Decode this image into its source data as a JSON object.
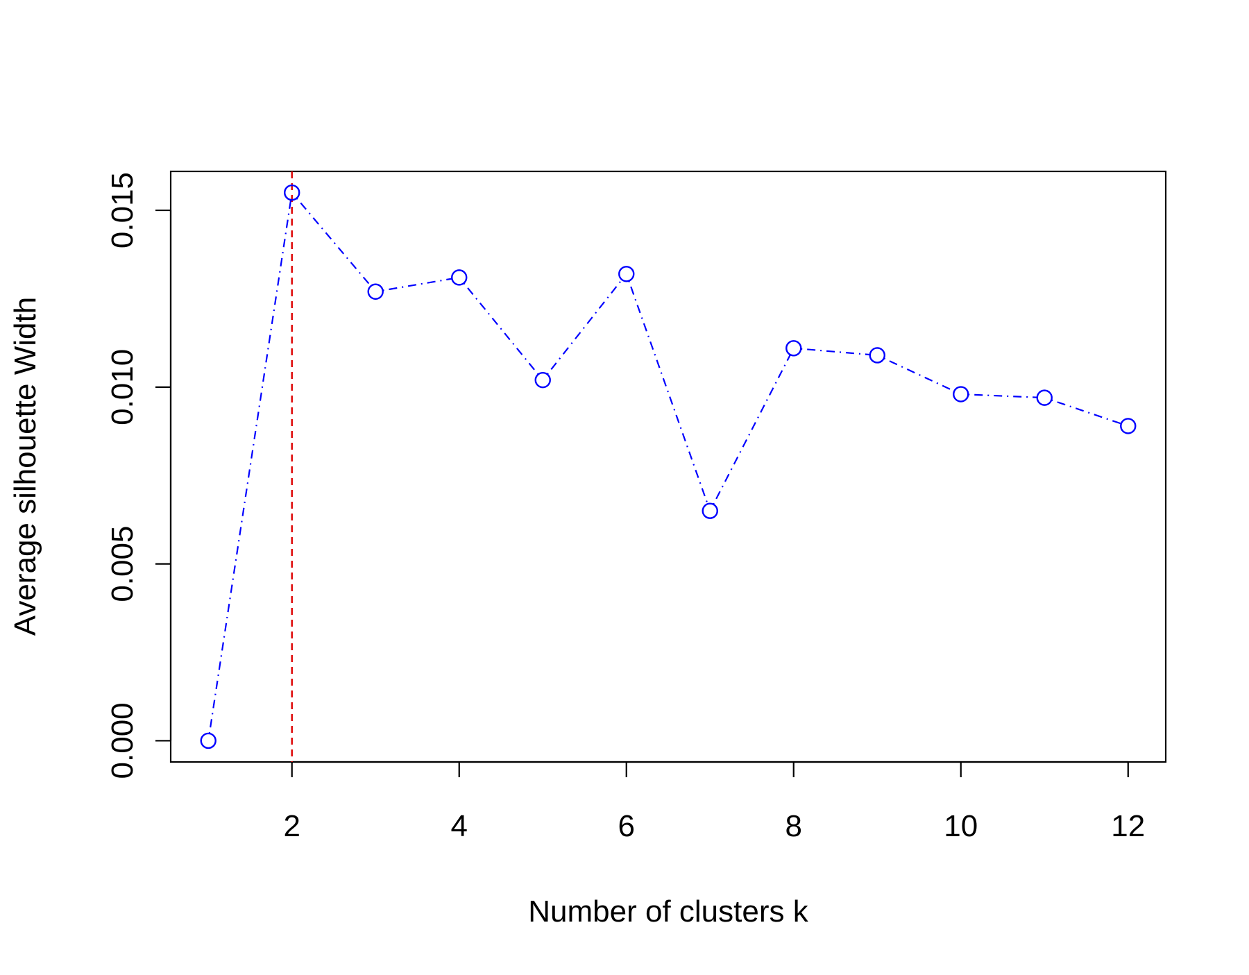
{
  "chart_data": {
    "type": "line",
    "title": "",
    "xlabel": "Number of clusters k",
    "ylabel": "Average silhouette Width",
    "x": [
      1,
      2,
      3,
      4,
      5,
      6,
      7,
      8,
      9,
      10,
      11,
      12
    ],
    "series": [
      {
        "values": [
          0.0,
          0.0155,
          0.0127,
          0.0131,
          0.0102,
          0.0132,
          0.0065,
          0.0111,
          0.0109,
          0.0098,
          0.0097,
          0.0089
        ],
        "color": "#0000ff",
        "line_style": "dot-dash",
        "marker": "open-circle"
      }
    ],
    "xlim": [
      0.55,
      12.45
    ],
    "ylim": [
      -0.0006,
      0.0161
    ],
    "xticks": [
      2,
      4,
      6,
      8,
      10,
      12
    ],
    "xtick_labels": [
      "2",
      "4",
      "6",
      "8",
      "10",
      "12"
    ],
    "yticks": [
      0.0,
      0.005,
      0.01,
      0.015
    ],
    "ytick_labels": [
      "0.000",
      "0.005",
      "0.010",
      "0.015"
    ],
    "reference_line": {
      "orientation": "vertical",
      "x": 2,
      "color": "#dd0000",
      "line_style": "dashed"
    },
    "grid": false,
    "legend": "none"
  }
}
